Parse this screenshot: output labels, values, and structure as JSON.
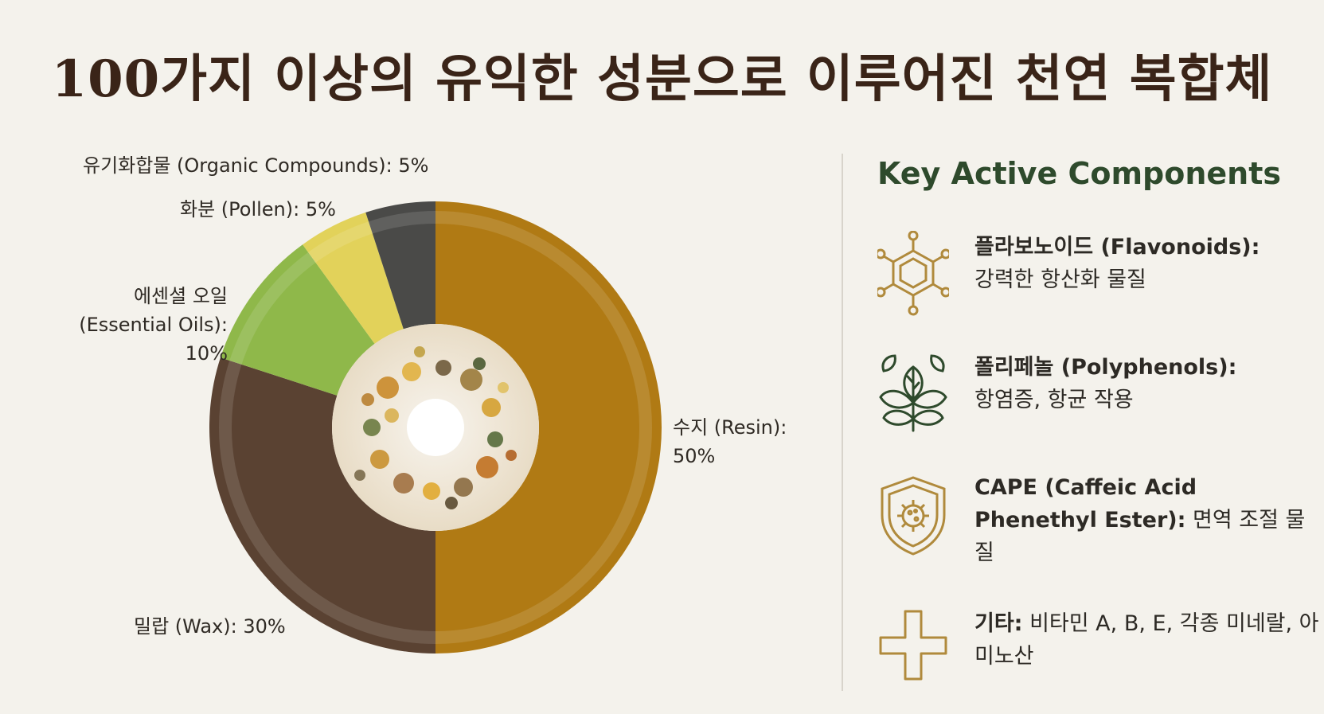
{
  "title": "100가지 이상의 유익한 성분으로 이루어진 천연 복합체",
  "chart_data": {
    "type": "pie",
    "categories": [
      "수지 (Resin)",
      "밀랍 (Wax)",
      "에센셜 오일 (Essential Oils)",
      "화분 (Pollen)",
      "유기화합물 (Organic Compounds)"
    ],
    "values": [
      50,
      30,
      10,
      5,
      5
    ],
    "colors": [
      "#b07a14",
      "#5a4232",
      "#8fb84a",
      "#e2d25a",
      "#4a4a48"
    ],
    "labels": {
      "resin_line1": "수지 (Resin):",
      "resin_line2": "50%",
      "wax": "밀랍 (Wax): 30%",
      "oils_line1": "에센셜 오일",
      "oils_line2": "(Essential Oils): 10%",
      "pollen": "화분 (Pollen): 5%",
      "organic": "유기화합물 (Organic Compounds): 5%"
    }
  },
  "panel": {
    "heading": "Key Active Components",
    "items": [
      {
        "icon": "molecule-icon",
        "name": "플라보노이드 (Flavonoids):",
        "desc": "강력한 항산화 물질"
      },
      {
        "icon": "leaves-icon",
        "name": "폴리페놀 (Polyphenols):",
        "desc": "항염증, 항균 작용"
      },
      {
        "icon": "shield-virus-icon",
        "name": "CAPE (Caffeic Acid Phenethyl Ester):",
        "desc": "면역 조절 물질"
      },
      {
        "icon": "plus-icon",
        "name": "기타:",
        "desc": "비타민 A, B, E, 각종 미네랄, 아미노산"
      }
    ]
  },
  "colors": {
    "accent_green": "#2e4a2c",
    "icon_gold": "#b08a3c",
    "title_brown": "#3a2418"
  }
}
